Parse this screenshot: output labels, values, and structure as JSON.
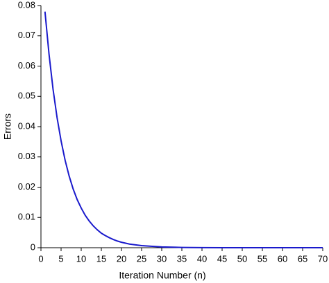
{
  "chart_data": {
    "type": "line",
    "xlabel": "Iteration Number (n)",
    "ylabel": "Errors",
    "x": [
      1,
      2,
      3,
      4,
      5,
      6,
      7,
      8,
      9,
      10,
      11,
      12,
      13,
      14,
      15,
      16,
      17,
      18,
      19,
      20,
      22,
      25,
      30,
      35,
      40,
      45,
      50,
      55,
      60,
      65,
      70
    ],
    "series": [
      {
        "name": "Errors",
        "color": "#1a1acc",
        "values": [
          0.078,
          0.064,
          0.0524,
          0.043,
          0.0353,
          0.0289,
          0.0237,
          0.0194,
          0.0159,
          0.0131,
          0.0107,
          0.0088,
          0.0072,
          0.0059,
          0.0048,
          0.004,
          0.0033,
          0.0027,
          0.0022,
          0.0018,
          0.0012,
          0.00068,
          0.00025,
          9.2e-05,
          3.4e-05,
          1.3e-05,
          5e-06,
          2e-06,
          7e-07,
          3e-07,
          1e-07
        ]
      }
    ],
    "xlim": [
      0,
      70
    ],
    "ylim": [
      0,
      0.08
    ],
    "xticks": [
      0,
      5,
      10,
      15,
      20,
      25,
      30,
      35,
      40,
      45,
      50,
      55,
      60,
      65,
      70
    ],
    "yticks": [
      0,
      0.01,
      0.02,
      0.03,
      0.04,
      0.05,
      0.06,
      0.07,
      0.08
    ]
  }
}
